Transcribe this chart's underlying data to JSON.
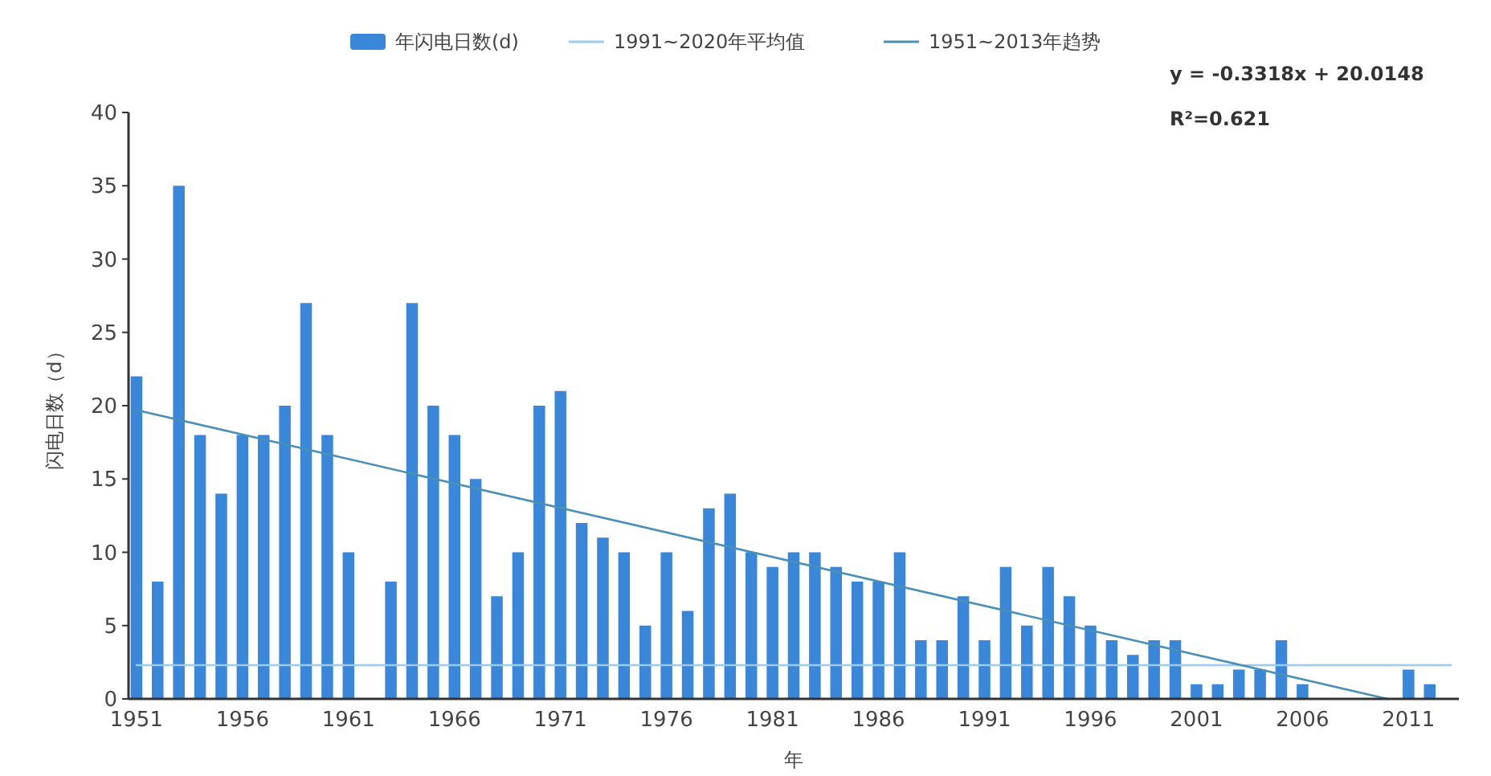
{
  "chart_data": {
    "type": "bar",
    "xlabel": "年",
    "ylabel": "闪电日数（d）",
    "legend": "top",
    "grid": false,
    "categories": [
      "1951",
      null,
      null,
      null,
      null,
      "1956",
      null,
      null,
      null,
      null,
      "1961",
      null,
      null,
      null,
      null,
      "1966",
      null,
      null,
      null,
      null,
      "1971",
      null,
      null,
      null,
      null,
      "1976",
      null,
      null,
      null,
      null,
      "1981",
      null,
      null,
      null,
      null,
      "1986",
      null,
      null,
      null,
      null,
      "1991",
      null,
      null,
      null,
      null,
      "1996",
      null,
      null,
      null,
      null,
      "2001",
      null,
      null,
      null,
      null,
      "2006",
      null,
      null,
      null,
      null,
      "2011",
      null,
      null
    ],
    "ylim": [
      0,
      40
    ],
    "yticks": [
      0,
      5,
      10,
      15,
      20,
      25,
      30,
      35,
      40
    ],
    "series": [
      {
        "name": "年闪电日数(d)",
        "color": "#3a86d8",
        "values": [
          22,
          8,
          35,
          18,
          14,
          18,
          18,
          20,
          27,
          18,
          10,
          0,
          8,
          27,
          20,
          18,
          15,
          7,
          10,
          20,
          21,
          12,
          11,
          10,
          5,
          10,
          6,
          13,
          14,
          10,
          9,
          10,
          10,
          9,
          8,
          8,
          10,
          4,
          4,
          7,
          4,
          9,
          5,
          9,
          7,
          5,
          4,
          3,
          4,
          4,
          1,
          1,
          2,
          2,
          4,
          1,
          0,
          0,
          0,
          0,
          2,
          1,
          0
        ]
      },
      {
        "name": "1991~2020年平均值",
        "type": "line",
        "color": "#9dcbee",
        "values": [
          2.3,
          2.3,
          2.3,
          2.3,
          2.3,
          2.3,
          2.3,
          2.3,
          2.3,
          2.3,
          2.3,
          2.3,
          2.3,
          2.3,
          2.3,
          2.3,
          2.3,
          2.3,
          2.3,
          2.3,
          2.3,
          2.3,
          2.3,
          2.3,
          2.3,
          2.3,
          2.3,
          2.3,
          2.3,
          2.3,
          2.3,
          2.3,
          2.3,
          2.3,
          2.3,
          2.3,
          2.3,
          2.3,
          2.3,
          2.3,
          2.3,
          2.3,
          2.3,
          2.3,
          2.3,
          2.3,
          2.3,
          2.3,
          2.3,
          2.3,
          2.3,
          2.3,
          2.3,
          2.3,
          2.3,
          2.3,
          2.3,
          2.3,
          2.3,
          2.3,
          2.3,
          2.3,
          2.3
        ]
      },
      {
        "name": "1951~2013年趋势",
        "type": "line",
        "color": "#4a8fb5",
        "values": [
          19.7,
          null,
          null,
          null,
          null,
          null,
          null,
          null,
          null,
          null,
          null,
          null,
          null,
          null,
          null,
          null,
          null,
          null,
          null,
          null,
          null,
          null,
          null,
          null,
          null,
          null,
          null,
          null,
          null,
          null,
          null,
          null,
          null,
          null,
          null,
          null,
          null,
          null,
          null,
          null,
          null,
          null,
          null,
          null,
          null,
          null,
          null,
          null,
          null,
          null,
          null,
          null,
          null,
          null,
          null,
          null,
          null,
          null,
          null,
          0,
          null,
          null,
          null
        ]
      }
    ],
    "annotations": [
      "y = -0.3318x + 20.0148",
      "R²=0.621"
    ]
  }
}
